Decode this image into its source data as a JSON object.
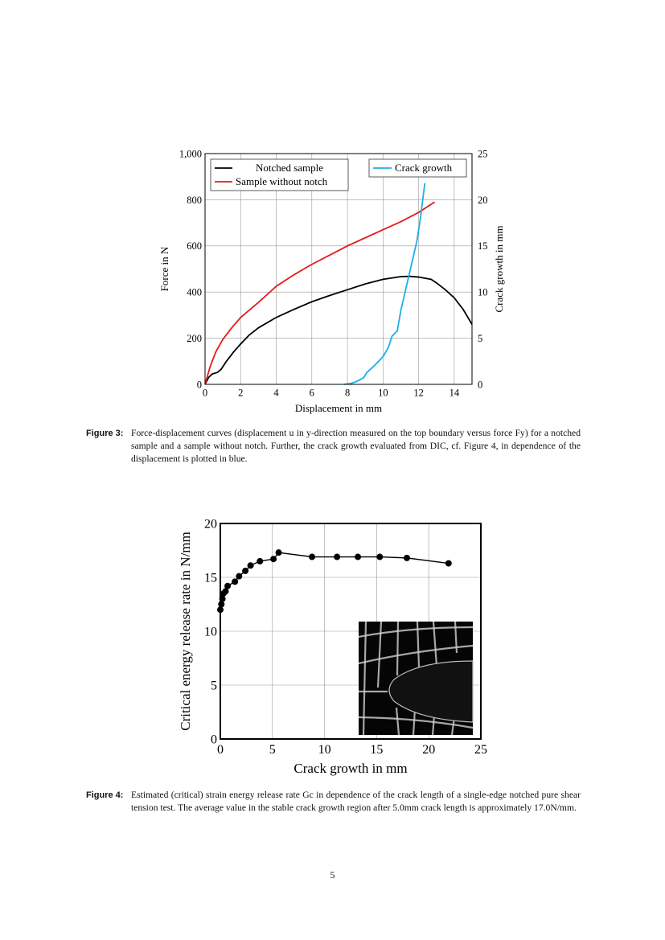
{
  "page_number": "5",
  "figures": [
    {
      "label": "Figure 3:",
      "caption": "Force-displacement curves (displacement u in y-direction measured on the top boundary versus force Fy) for a notched sample and a sample without notch. Further, the crack growth evaluated from DIC, cf. Figure 4, in dependence of the displacement is plotted in blue."
    },
    {
      "label": "Figure 4:",
      "caption": "Estimated (critical) strain energy release rate Gc in dependence of the crack length of a single-edge notched pure shear tension test. The average value in the stable crack growth region after 5.0mm crack length is approximately 17.0N/mm."
    }
  ],
  "chart_data": [
    {
      "type": "line",
      "xlabel": "Displacement in mm",
      "ylabel": "Force in N",
      "y2label": "Crack growth in mm",
      "xlim": [
        0,
        15
      ],
      "ylim": [
        0,
        1000
      ],
      "y2lim": [
        0,
        25
      ],
      "xticks": [
        "0",
        "2",
        "4",
        "6",
        "8",
        "10",
        "12",
        "14"
      ],
      "yticks": [
        "0",
        "200",
        "400",
        "600",
        "800",
        "1,000"
      ],
      "y2ticks": [
        "0",
        "5",
        "10",
        "15",
        "20",
        "25"
      ],
      "grid": true,
      "legend": [
        "top-left",
        "top-right"
      ],
      "series": [
        {
          "name": "Notched sample",
          "color": "#000000",
          "axis": "left",
          "x": [
            0,
            0.2,
            0.4,
            0.7,
            0.9,
            1.2,
            1.6,
            2,
            2.5,
            3,
            4,
            5,
            6,
            7,
            8,
            9,
            10,
            11,
            11.5,
            12,
            12.7,
            13,
            13.5,
            14,
            14.5,
            15
          ],
          "y": [
            0,
            30,
            45,
            52,
            65,
            100,
            140,
            175,
            215,
            245,
            290,
            325,
            358,
            385,
            410,
            435,
            455,
            467,
            468,
            465,
            455,
            440,
            410,
            375,
            325,
            260
          ]
        },
        {
          "name": "Sample without notch",
          "color": "#e41a1c",
          "axis": "left",
          "x": [
            0,
            0.3,
            0.6,
            1,
            1.5,
            2,
            3,
            4,
            5,
            6,
            7,
            8,
            9,
            10,
            11,
            12,
            12.9
          ],
          "y": [
            0,
            80,
            140,
            195,
            245,
            290,
            355,
            425,
            475,
            520,
            560,
            600,
            635,
            670,
            705,
            745,
            790
          ]
        },
        {
          "name": "Crack growth",
          "color": "#1ab0e6",
          "axis": "right",
          "x": [
            7.8,
            8.2,
            8.5,
            8.9,
            9.1,
            9.5,
            9.8,
            10,
            10.3,
            10.5,
            10.8,
            11,
            11.3,
            11.6,
            11.9,
            12.1,
            12.35
          ],
          "y": [
            0,
            0.1,
            0.3,
            0.7,
            1.3,
            2,
            2.6,
            3,
            4,
            5.2,
            5.8,
            8,
            10.5,
            13,
            15.5,
            18,
            21.8
          ]
        }
      ]
    },
    {
      "type": "line",
      "xlabel": "Crack growth in mm",
      "ylabel": "Critical energy release rate in N/mm",
      "xlim": [
        0,
        25
      ],
      "ylim": [
        0,
        20
      ],
      "xticks": [
        "0",
        "5",
        "10",
        "15",
        "20",
        "25"
      ],
      "yticks": [
        "0",
        "5",
        "10",
        "15",
        "20"
      ],
      "grid": true,
      "markers": "circle",
      "inset": "DIC image of crack tip with deformed grid",
      "series": [
        {
          "color": "#000000",
          "x": [
            0,
            0.1,
            0.2,
            0.3,
            0.5,
            0.7,
            1.4,
            1.8,
            2.4,
            2.9,
            3.8,
            5.1,
            5.6,
            8.8,
            11.2,
            13.2,
            15.3,
            17.9,
            21.9
          ],
          "y": [
            12,
            12.5,
            13,
            13.5,
            13.7,
            14.2,
            14.6,
            15.1,
            15.6,
            16.1,
            16.5,
            16.7,
            17.3,
            16.9,
            16.9,
            16.9,
            16.9,
            16.8,
            16.3
          ]
        }
      ]
    }
  ]
}
